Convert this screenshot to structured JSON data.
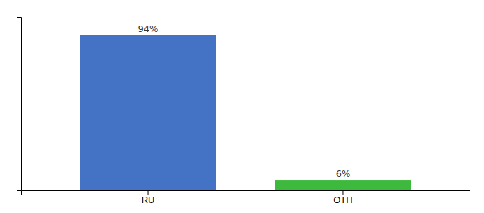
{
  "chart_data": {
    "type": "bar",
    "categories": [
      "RU",
      "OTH"
    ],
    "values": [
      94,
      6
    ],
    "value_labels": [
      "94%",
      "6%"
    ],
    "colors": [
      "#4472c4",
      "#3dba3d"
    ],
    "ylim": [
      0,
      105
    ],
    "data_labels": true,
    "tick_labels": "x"
  }
}
